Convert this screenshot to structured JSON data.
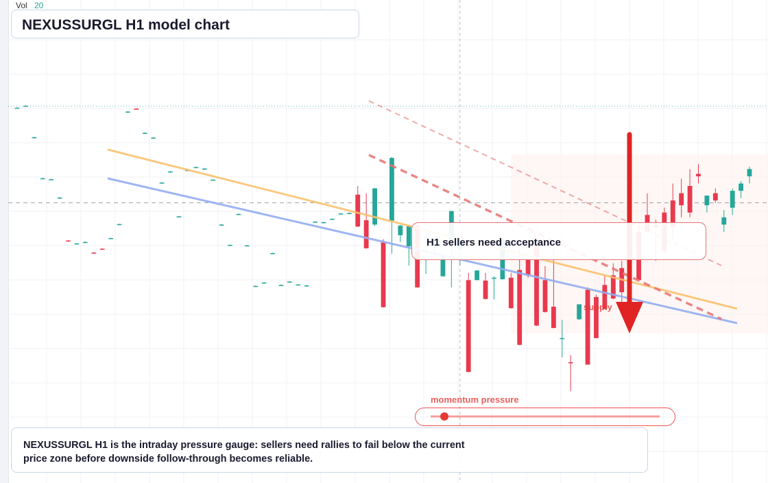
{
  "header": {
    "vol_label": "Vol",
    "vol_value": "20",
    "title": "NEXUSSURGL H1 model chart"
  },
  "callout": {
    "text": "H1 sellers need acceptance"
  },
  "zone_labels": {
    "supply": "supply",
    "momentum": "momentum pressure"
  },
  "note": {
    "line1": "NEXUSSURGL H1 is the intraday pressure gauge: sellers need rallies to fail below the current",
    "line2": "price zone before downside follow-through becomes reliable."
  },
  "gauge": {
    "level": 0.06
  },
  "colors": {
    "up": "#26a69a",
    "down": "#e8394e",
    "ma_fast": "#f9c06a",
    "ma_slow": "#94aef0",
    "resistance": "#e57373",
    "arrow": "#e02424"
  },
  "chart_data": {
    "type": "candlestick",
    "title": "NEXUSSURGL H1 model chart",
    "timeframe": "H1",
    "ylim": [
      0,
      100
    ],
    "price_scale": "unlabeled",
    "reference_lines": [
      {
        "style": "dotted",
        "color": "#26a69a",
        "value": 78
      },
      {
        "style": "dashed",
        "color": "#888888",
        "value": 58
      }
    ],
    "crosshair_x_index": 52,
    "candles": [
      [
        77.6,
        77.8,
        77.5,
        77.7
      ],
      [
        78.0,
        78.2,
        77.9,
        78.1
      ],
      [
        71.5,
        71.7,
        71.4,
        71.6
      ],
      [
        63.0,
        63.2,
        62.9,
        63.1
      ],
      [
        62.8,
        63.0,
        62.7,
        62.9
      ],
      [
        59.0,
        59.2,
        58.8,
        59.1
      ],
      [
        50.2,
        50.3,
        50.0,
        50.1
      ],
      [
        49.5,
        49.7,
        49.4,
        49.6
      ],
      [
        49.8,
        50.0,
        49.7,
        49.9
      ],
      [
        47.7,
        47.8,
        47.5,
        47.6
      ],
      [
        48.5,
        48.6,
        48.3,
        48.4
      ],
      [
        50.6,
        50.8,
        50.5,
        50.7
      ],
      [
        53.5,
        53.7,
        53.4,
        53.6
      ],
      [
        76.8,
        77.0,
        76.6,
        76.9
      ],
      [
        77.5,
        77.6,
        77.3,
        77.4
      ],
      [
        72.4,
        72.6,
        72.3,
        72.5
      ],
      [
        71.4,
        71.6,
        71.3,
        71.5
      ],
      [
        62.1,
        62.3,
        62.0,
        62.2
      ],
      [
        64.4,
        64.6,
        64.3,
        64.5
      ],
      [
        55.1,
        55.3,
        55.0,
        55.2
      ],
      [
        64.7,
        64.9,
        64.6,
        64.8
      ],
      [
        65.3,
        65.5,
        65.2,
        65.4
      ],
      [
        65.0,
        65.2,
        64.9,
        65.1
      ],
      [
        62.7,
        62.9,
        62.6,
        62.8
      ],
      [
        53.4,
        53.6,
        53.3,
        53.5
      ],
      [
        49.2,
        49.4,
        49.1,
        49.3
      ],
      [
        55.6,
        55.8,
        55.5,
        55.7
      ],
      [
        49.1,
        49.3,
        49.0,
        49.2
      ],
      [
        40.7,
        40.9,
        40.6,
        40.8
      ],
      [
        41.4,
        41.6,
        41.3,
        41.5
      ],
      [
        47.5,
        47.7,
        47.4,
        47.6
      ],
      [
        40.9,
        41.1,
        40.8,
        41.0
      ],
      [
        41.6,
        41.8,
        41.5,
        41.7
      ],
      [
        41.0,
        41.2,
        40.9,
        41.1
      ],
      [
        40.8,
        41.0,
        40.7,
        40.9
      ],
      [
        54.0,
        54.2,
        53.9,
        54.1
      ],
      [
        53.9,
        54.1,
        53.8,
        54.0
      ],
      [
        54.6,
        54.8,
        54.5,
        54.7
      ],
      [
        55.7,
        55.9,
        55.6,
        55.8
      ],
      [
        55.8,
        56.0,
        55.7,
        55.9
      ],
      [
        59.7,
        61.5,
        53.0,
        53.1
      ],
      [
        54.4,
        60.0,
        48.5,
        48.6
      ],
      [
        53.5,
        61.1,
        53.2,
        61.0
      ],
      [
        49.8,
        50.5,
        36.3,
        36.4
      ],
      [
        54.3,
        67.5,
        47.5,
        67.3
      ],
      [
        51.3,
        53.4,
        49.9,
        53.3
      ],
      [
        49.0,
        53.3,
        45.0,
        53.2
      ],
      [
        53.4,
        53.5,
        40.4,
        40.5
      ],
      [
        51.0,
        51.1,
        43.3,
        51.0
      ],
      [
        50.1,
        50.6,
        46.2,
        50.5
      ],
      [
        42.8,
        47.2,
        42.7,
        47.1
      ],
      [
        49.8,
        56.4,
        40.5,
        56.3
      ],
      [
        48.4,
        51.0,
        45.1,
        50.9
      ],
      [
        42.0,
        43.5,
        22.9,
        23.0
      ],
      [
        42.0,
        44.0,
        42.0,
        44.0
      ],
      [
        41.9,
        43.5,
        38.0,
        38.1
      ],
      [
        42.3,
        42.8,
        38.0,
        42.5
      ],
      [
        42.2,
        50.5,
        42.1,
        50.4
      ],
      [
        42.5,
        43.5,
        36.1,
        36.2
      ],
      [
        44.1,
        48.5,
        28.5,
        28.6
      ],
      [
        46.4,
        46.4,
        42.5,
        43.0
      ],
      [
        49.1,
        49.1,
        32.5,
        32.6
      ],
      [
        42.0,
        44.9,
        35.3,
        35.4
      ],
      [
        36.5,
        48.5,
        32.0,
        32.1
      ],
      [
        30.0,
        33.8,
        26.0,
        30.0
      ],
      [
        25.0,
        26.5,
        19.0,
        24.8
      ],
      [
        33.9,
        37.0,
        33.8,
        37.0
      ],
      [
        40.0,
        40.5,
        24.6,
        24.5
      ],
      [
        38.5,
        39.0,
        30.0,
        30.0
      ],
      [
        41.0,
        43.0,
        36.0,
        36.0
      ],
      [
        43.0,
        45.5,
        38.0,
        38.2
      ],
      [
        44.5,
        46.0,
        35.0,
        39.5
      ],
      [
        48.0,
        52.0,
        41.5,
        47.5
      ],
      [
        52.0,
        54.0,
        42.0,
        42.0
      ],
      [
        55.5,
        60.0,
        52.0,
        52.0
      ],
      [
        53.5,
        54.5,
        46.0,
        53.0
      ],
      [
        56.0,
        57.0,
        47.5,
        48.0
      ],
      [
        58.5,
        62.0,
        50.5,
        53.0
      ],
      [
        60.0,
        63.0,
        55.0,
        57.5
      ],
      [
        61.5,
        65.0,
        55.0,
        56.0
      ],
      [
        64.0,
        66.0,
        62.0,
        63.5
      ],
      [
        57.5,
        59.5,
        56.0,
        59.5
      ],
      [
        60.0,
        61.0,
        58.0,
        58.5
      ],
      [
        53.5,
        56.5,
        52.0,
        55.0
      ],
      [
        57.0,
        61.0,
        55.5,
        60.5
      ],
      [
        60.5,
        62.5,
        59.0,
        62.0
      ],
      [
        63.5,
        65.5,
        62.0,
        65.0
      ]
    ]
  }
}
